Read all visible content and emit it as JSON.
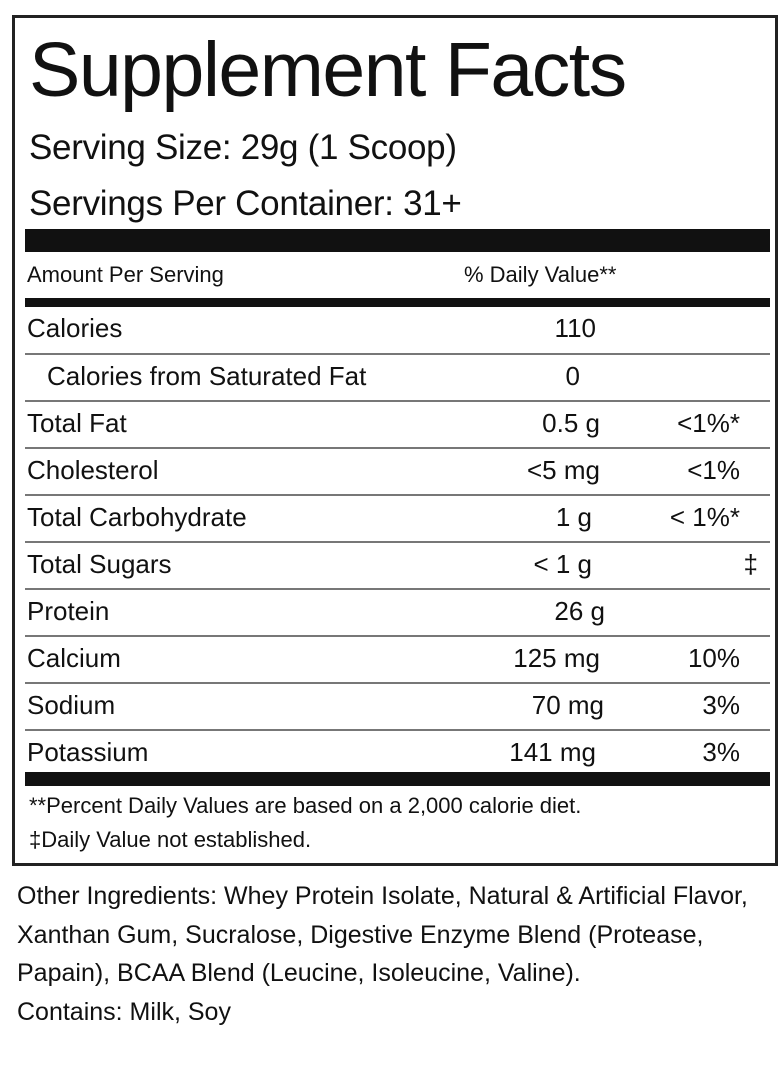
{
  "title": "Supplement Facts",
  "serving_size": "Serving Size: 29g (1 Scoop)",
  "servings_per_container": "Servings Per Container: 31+",
  "header": {
    "amount": "Amount Per Serving",
    "daily_value": "% Daily Value**"
  },
  "rows": [
    {
      "name": "Calories",
      "amount": "110",
      "dv": ""
    },
    {
      "name": "Calories from Saturated Fat",
      "amount": "0",
      "dv": ""
    },
    {
      "name": "Total Fat",
      "amount": "0.5 g",
      "dv": "<1%*"
    },
    {
      "name": "Cholesterol",
      "amount": "<5 mg",
      "dv": "<1%"
    },
    {
      "name": "Total Carbohydrate",
      "amount": "1 g",
      "dv": "< 1%*"
    },
    {
      "name": "Total Sugars",
      "amount": "< 1 g",
      "dv": "‡"
    },
    {
      "name": "Protein",
      "amount": "26 g",
      "dv": ""
    },
    {
      "name": "Calcium",
      "amount": "125 mg",
      "dv": "10%"
    },
    {
      "name": "Sodium",
      "amount": "70 mg",
      "dv": "3%"
    },
    {
      "name": "Potassium",
      "amount": "141 mg",
      "dv": "3%"
    }
  ],
  "footnotes": [
    "**Percent Daily Values are based on a 2,000 calorie diet.",
    "‡Daily Value not established."
  ],
  "other_ingredients": "Other Ingredients: Whey Protein Isolate, Natural & Artificial Flavor, Xanthan Gum, Sucralose, Digestive Enzyme Blend (Protease, Papain), BCAA Blend (Leucine, Isoleucine, Valine).",
  "contains": "Contains: Milk, Soy"
}
